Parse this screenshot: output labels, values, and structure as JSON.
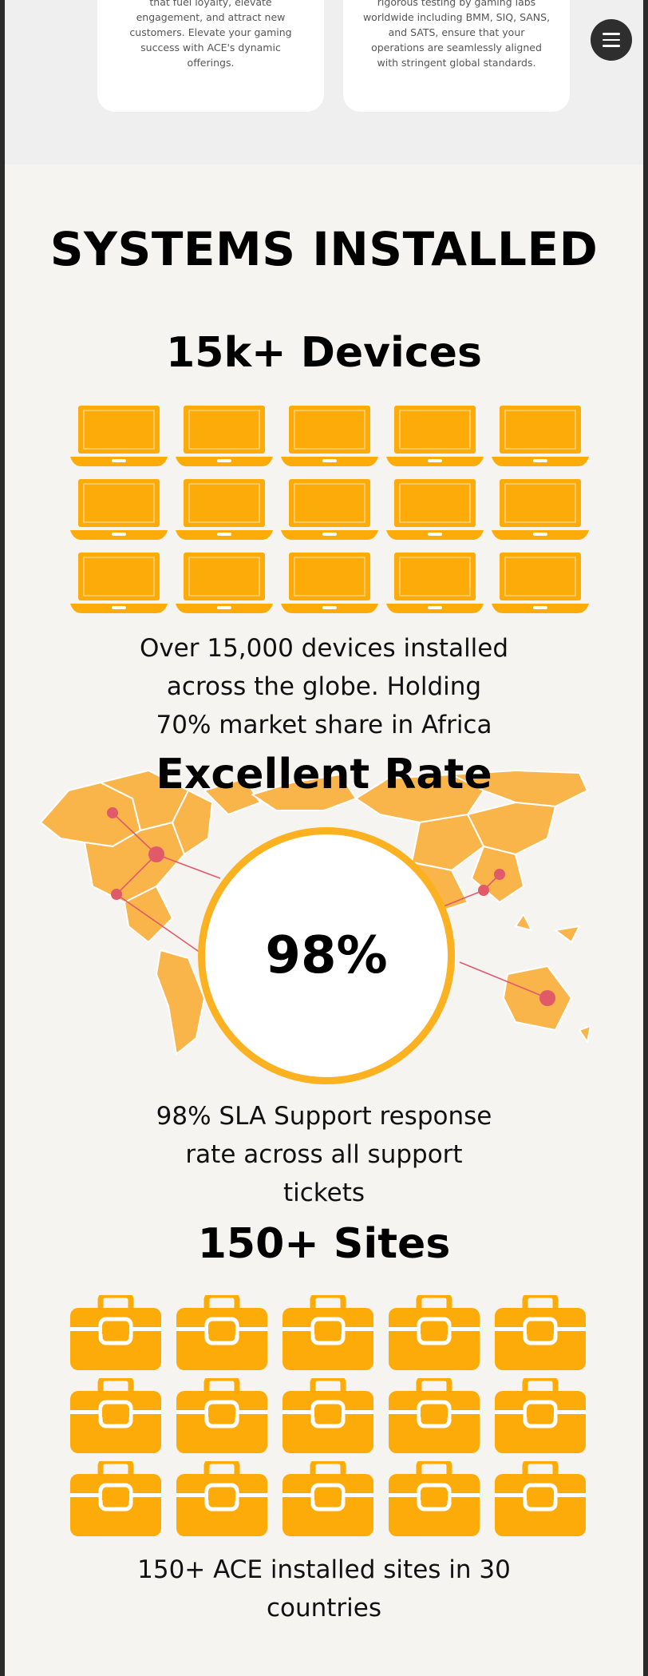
{
  "cards": [
    {
      "lines": [
        "that fuel loyalty, elevate",
        "engagement, and attract new",
        "customers. Elevate your gaming",
        "success with ACE's dynamic",
        "offerings."
      ]
    },
    {
      "lines": [
        "rigorous testing by gaming labs",
        "worldwide including BMM, SIQ, SANS,",
        "and SATS, ensure that your",
        "operations are seamlessly aligned",
        "with stringent global standards."
      ]
    }
  ],
  "menu": {
    "icon": "hamburger-menu-icon"
  },
  "section_title": "SYSTEMS INSTALLED",
  "devices": {
    "heading": "15k+ Devices",
    "icon": "laptop-icon",
    "icon_rows": 3,
    "icon_cols": 5,
    "desc_lines": [
      "Over 15,000 devices installed",
      "across the globe. Holding",
      "70% market share in Africa"
    ]
  },
  "rate": {
    "heading": "Excellent Rate",
    "value": "98%",
    "desc_lines": [
      "98% SLA Support response",
      "rate across all support",
      "tickets"
    ]
  },
  "sites": {
    "heading": "150+ Sites",
    "icon": "briefcase-icon",
    "icon_rows": 3,
    "icon_cols": 5,
    "desc_lines": [
      "150+ ACE installed sites in 30",
      "countries"
    ]
  },
  "colors": {
    "accent": "#fdab08",
    "ring": "#fcb121",
    "map": "#f9b44a",
    "map_line": "#e05a6a"
  }
}
